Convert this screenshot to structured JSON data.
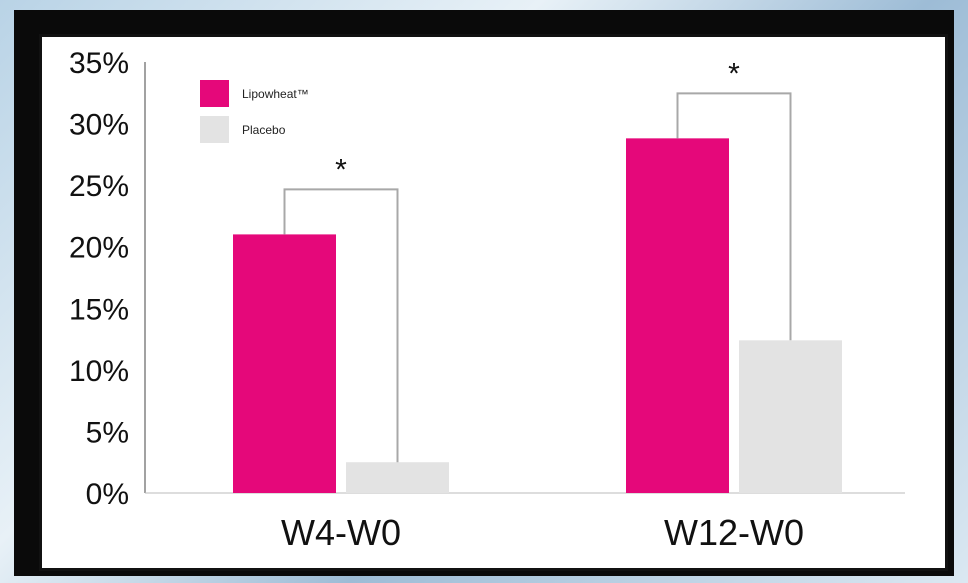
{
  "chart_data": {
    "type": "bar",
    "categories": [
      "W4-W0",
      "W12-W0"
    ],
    "series": [
      {
        "name": "Lipowheat™",
        "values": [
          21,
          28.8
        ],
        "color": "#e5087a"
      },
      {
        "name": "Placebo",
        "values": [
          2.5,
          12.4
        ],
        "color": "#e3e3e3"
      }
    ],
    "yticks": [
      "0%",
      "5%",
      "10%",
      "15%",
      "20%",
      "25%",
      "30%",
      "35%"
    ],
    "ylim": [
      0,
      35
    ],
    "legend_position": "top-left",
    "significance_marker": "*",
    "grid": false
  }
}
